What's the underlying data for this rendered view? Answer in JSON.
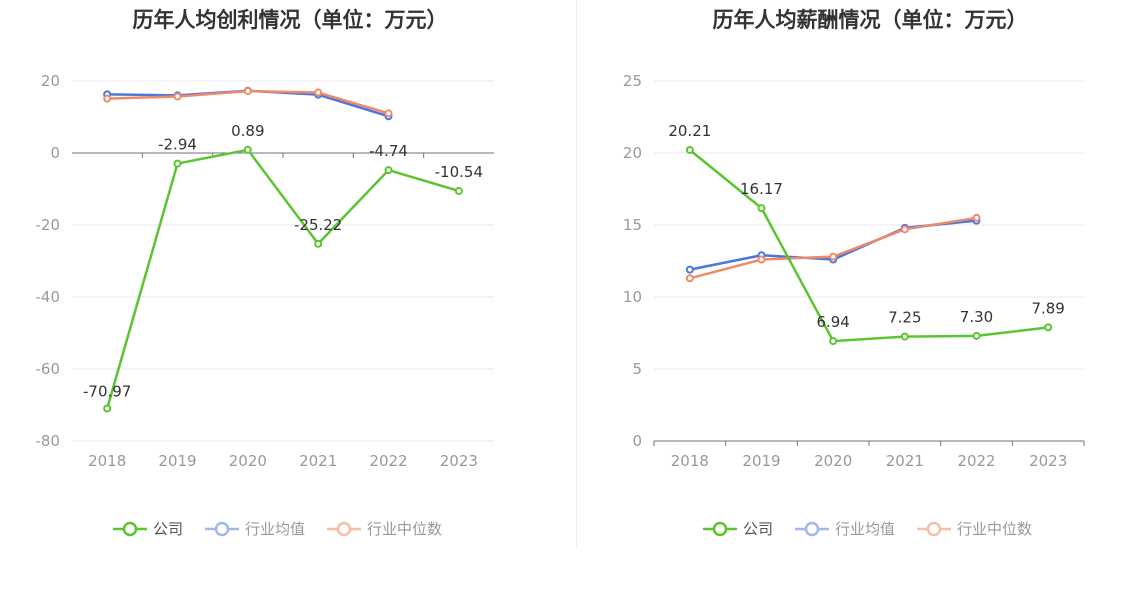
{
  "chart_data": [
    {
      "type": "line",
      "title": "历年人均创利情况（单位：万元）",
      "categories": [
        "2018",
        "2019",
        "2020",
        "2021",
        "2022",
        "2023"
      ],
      "ylim": [
        -80,
        25
      ],
      "yticks": [
        20,
        0,
        -20,
        -40,
        -60,
        -80
      ],
      "grid": true,
      "legend_position": "bottom-center",
      "series": [
        {
          "name": "公司",
          "values": [
            -70.97,
            -2.94,
            0.89,
            -25.22,
            -4.74,
            -10.54
          ],
          "labels": [
            "-70.97",
            "-2.94",
            "0.89",
            "-25.22",
            "-4.74",
            "-10.54"
          ],
          "color": "#5ac530"
        },
        {
          "name": "行业均值",
          "values": [
            16.3,
            16.0,
            17.3,
            16.2,
            10.2,
            null
          ],
          "color": "#4a78dc"
        },
        {
          "name": "行业中位数",
          "values": [
            15.1,
            15.7,
            17.2,
            16.8,
            11.0,
            null
          ],
          "color": "#ef8a68"
        }
      ]
    },
    {
      "type": "line",
      "title": "历年人均薪酬情况（单位：万元）",
      "categories": [
        "2018",
        "2019",
        "2020",
        "2021",
        "2022",
        "2023"
      ],
      "ylim": [
        0,
        25
      ],
      "yticks": [
        25,
        20,
        15,
        10,
        5,
        0
      ],
      "grid": true,
      "legend_position": "bottom-center",
      "series": [
        {
          "name": "公司",
          "values": [
            20.21,
            16.17,
            6.94,
            7.25,
            7.3,
            7.89
          ],
          "labels": [
            "20.21",
            "16.17",
            "6.94",
            "7.25",
            "7.30",
            "7.89"
          ],
          "color": "#5ac530"
        },
        {
          "name": "行业均值",
          "values": [
            11.9,
            12.9,
            12.6,
            14.8,
            15.3,
            null
          ],
          "color": "#4a78dc"
        },
        {
          "name": "行业中位数",
          "values": [
            11.3,
            12.6,
            12.8,
            14.7,
            15.5,
            null
          ],
          "color": "#ef8a68"
        }
      ]
    }
  ],
  "legend": {
    "items": [
      {
        "label": "公司",
        "color": "#5ac530",
        "faded_color": "#5ac530",
        "dim": false
      },
      {
        "label": "行业均值",
        "color": "#4a78dc",
        "faded_color": "#9fb8ec",
        "dim": true
      },
      {
        "label": "行业中位数",
        "color": "#ef8a68",
        "faded_color": "#f6bea9",
        "dim": true
      }
    ]
  }
}
